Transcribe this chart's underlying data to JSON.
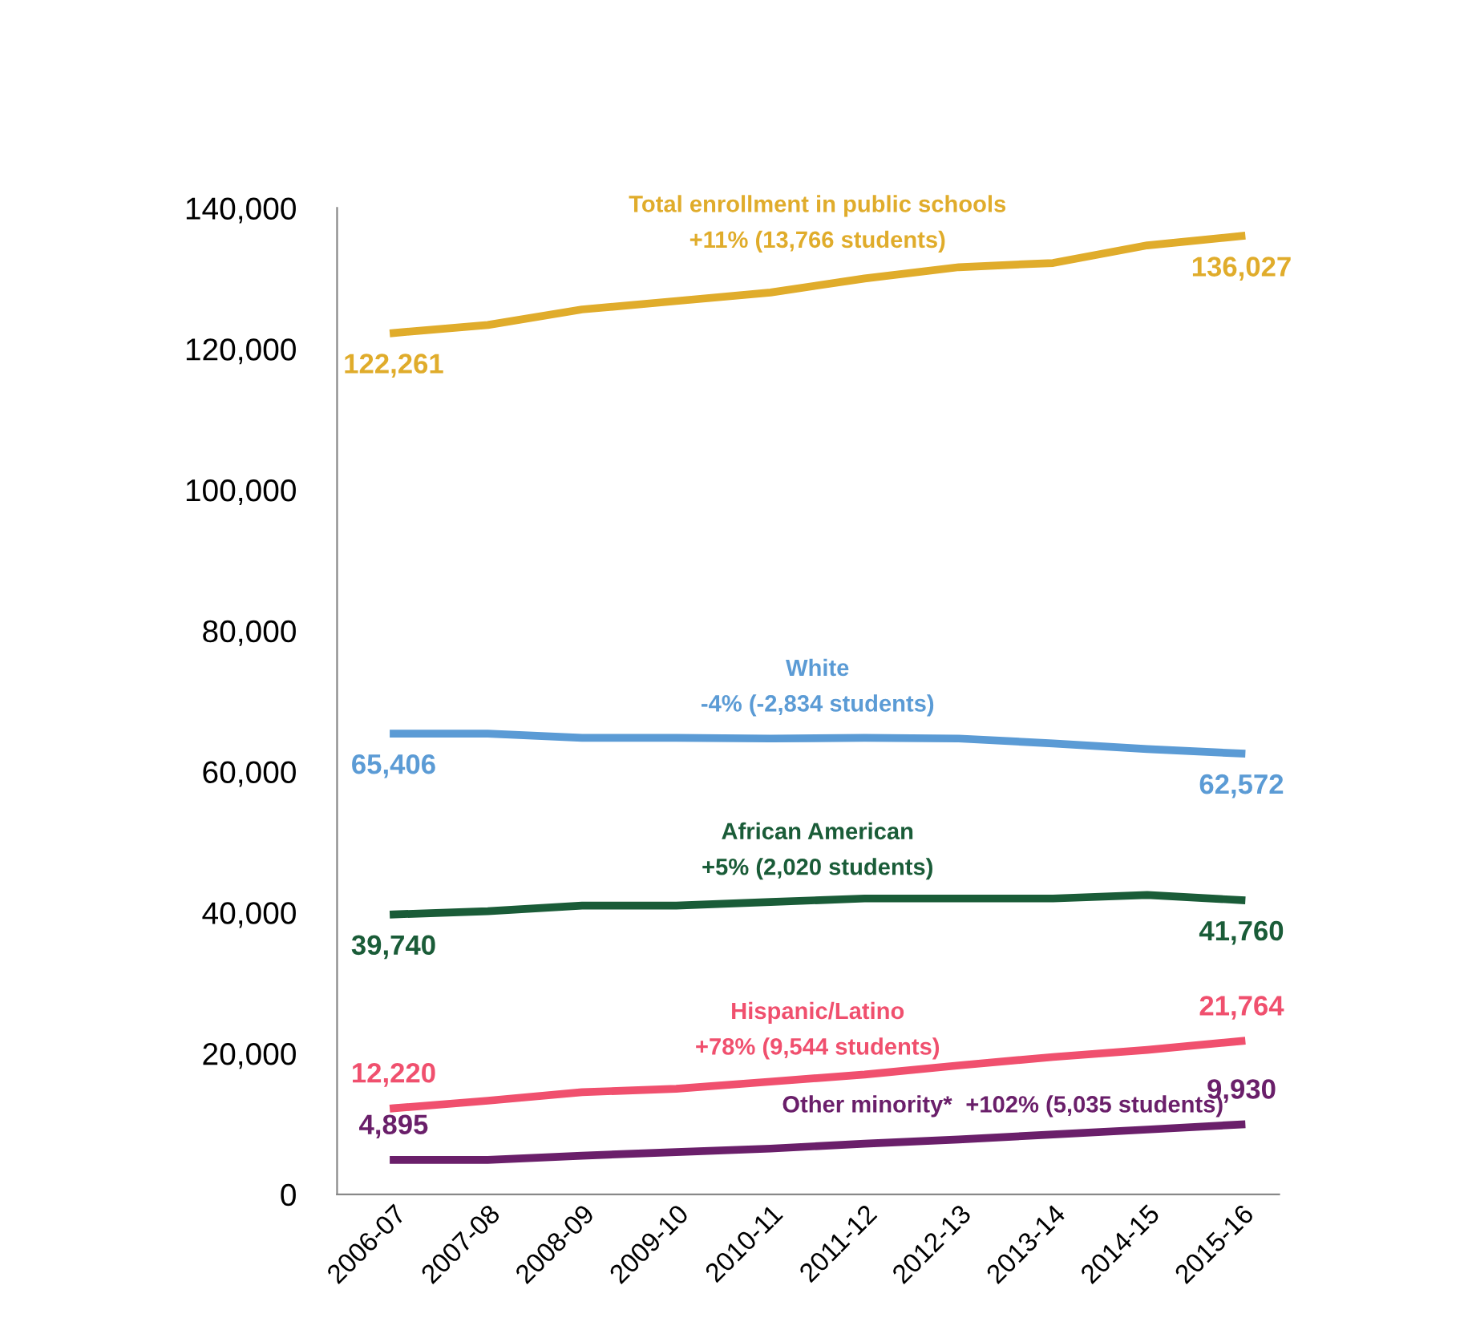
{
  "chart_data": {
    "type": "line",
    "categories": [
      "2006-07",
      "2007-08",
      "2008-09",
      "2009-10",
      "2010-11",
      "2011-12",
      "2012-13",
      "2013-14",
      "2014-15",
      "2015-16"
    ],
    "series": [
      {
        "name": "Total enrollment in public schools",
        "color": "#e0ac2b",
        "values": [
          122261,
          123400,
          125600,
          126800,
          128000,
          130000,
          131600,
          132200,
          134700,
          136027
        ],
        "value_labels": [
          "122,261",
          null,
          null,
          null,
          null,
          null,
          null,
          null,
          null,
          "136,027"
        ]
      },
      {
        "name": "White",
        "color": "#5b9bd5",
        "values": [
          65406,
          65400,
          64800,
          64800,
          64700,
          64800,
          64700,
          64000,
          63200,
          62572
        ],
        "value_labels": [
          "65,406",
          null,
          null,
          null,
          null,
          null,
          null,
          null,
          null,
          "62,572"
        ]
      },
      {
        "name": "African American",
        "color": "#1a5c38",
        "values": [
          39740,
          40200,
          41000,
          41000,
          41500,
          42000,
          42000,
          42000,
          42500,
          41760
        ],
        "value_labels": [
          "39,740",
          null,
          null,
          null,
          null,
          null,
          null,
          null,
          null,
          "41,760"
        ]
      },
      {
        "name": "Hispanic/Latino",
        "color": "#f0506e",
        "values": [
          12220,
          13300,
          14500,
          15000,
          16000,
          17000,
          18300,
          19500,
          20500,
          21764
        ],
        "value_labels": [
          "12,220",
          null,
          null,
          null,
          null,
          null,
          null,
          null,
          null,
          "21,764"
        ]
      },
      {
        "name": "Other minority*",
        "color": "#6a1f6a",
        "values": [
          4895,
          4900,
          5500,
          6000,
          6500,
          7200,
          7800,
          8500,
          9200,
          9930
        ],
        "value_labels": [
          "4,895",
          null,
          null,
          null,
          null,
          null,
          null,
          null,
          null,
          "9,930"
        ]
      }
    ],
    "annotations": [
      {
        "text": "+11% (13,766 students)",
        "x": "2010-11",
        "y": 128000
      },
      {
        "text": "-4% (-2,834 students)",
        "x": "2010-11",
        "y": 64700
      },
      {
        "text": "+5% (2,020 students)",
        "x": "2010-11",
        "y": 41500
      },
      {
        "text": "+78% (9,544 students)",
        "x": "2010-11",
        "y": 16000
      },
      {
        "text": "+102% (5,035 students)",
        "x": "2012-13",
        "y": 7800
      }
    ],
    "ylim": [
      0,
      140000
    ],
    "yticks": [
      {
        "value": 0,
        "label": "0"
      },
      {
        "value": 20000,
        "label": "20,000"
      },
      {
        "value": 40000,
        "label": "40,000"
      },
      {
        "value": 60000,
        "label": "60,000"
      },
      {
        "value": 80000,
        "label": "80,000"
      },
      {
        "value": 100000,
        "label": "100,000"
      },
      {
        "value": 120000,
        "label": "120,000"
      },
      {
        "value": 140000,
        "label": "140,000"
      }
    ],
    "grid": false,
    "legend": false,
    "marker": "none",
    "line_style": "solid"
  }
}
